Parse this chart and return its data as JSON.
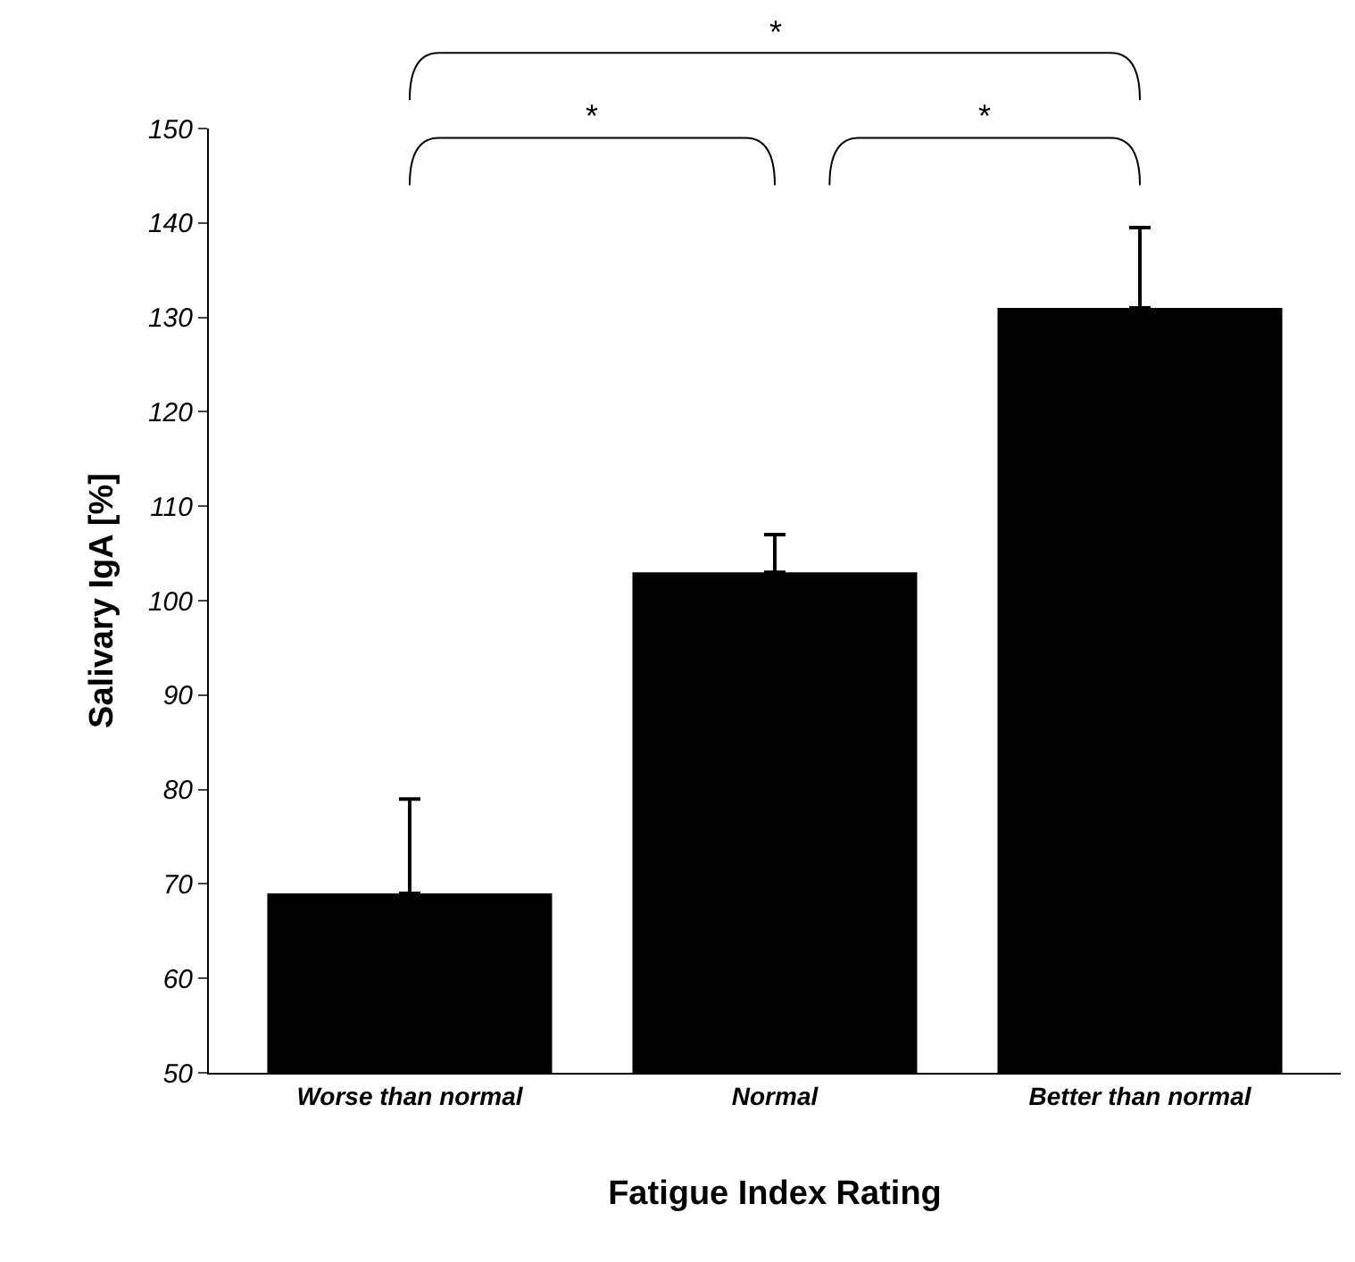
{
  "chart_data": {
    "type": "bar",
    "categories": [
      "Worse than normal",
      "Normal",
      "Better than normal"
    ],
    "values": [
      69,
      103,
      131
    ],
    "color": "#000000",
    "errors": [
      [
        69,
        79
      ],
      [
        103,
        107
      ],
      [
        131,
        139.5
      ]
    ],
    "xlabel": "Fatigue Index Rating",
    "ylabel": "Salivary IgA [%]",
    "ylim": [
      50,
      150
    ],
    "yticks": [
      50,
      60,
      70,
      80,
      90,
      100,
      110,
      120,
      130,
      140,
      150
    ],
    "annotations": [
      "*",
      "*",
      "*"
    ]
  }
}
